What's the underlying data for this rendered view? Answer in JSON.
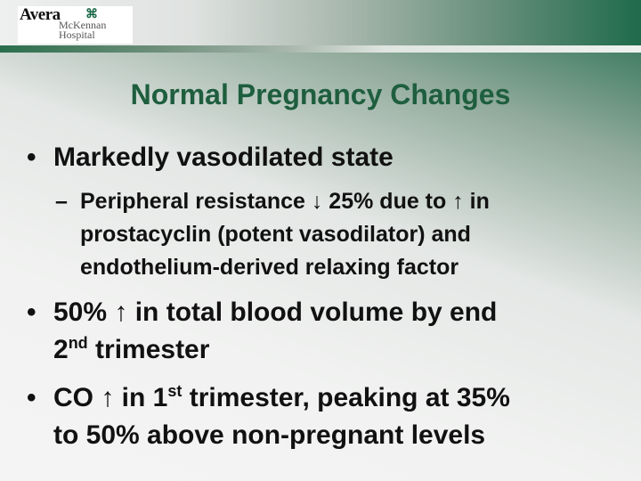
{
  "logo": {
    "name": "Avera",
    "sub1": "McKennan",
    "sub2": "Hospital"
  },
  "title": "Normal Pregnancy Changes",
  "bullets": [
    {
      "text": "Markedly vasodilated state",
      "sub": {
        "dash": "–",
        "lines": [
          "Peripheral resistance ↓ 25% due to ↑ in",
          "prostacyclin (potent vasodilator) and",
          "endothelium-derived relaxing factor"
        ]
      }
    },
    {
      "line1": "50% ↑ in total blood volume by end",
      "line2_pre": "2",
      "line2_sup": "nd",
      "line2_post": " trimester"
    },
    {
      "line1_pre": "CO ↑ in 1",
      "line1_sup": "st",
      "line1_post": " trimester, peaking at 35%",
      "line2": "to 50% above non-pregnant levels"
    }
  ],
  "bullet_char": "•"
}
